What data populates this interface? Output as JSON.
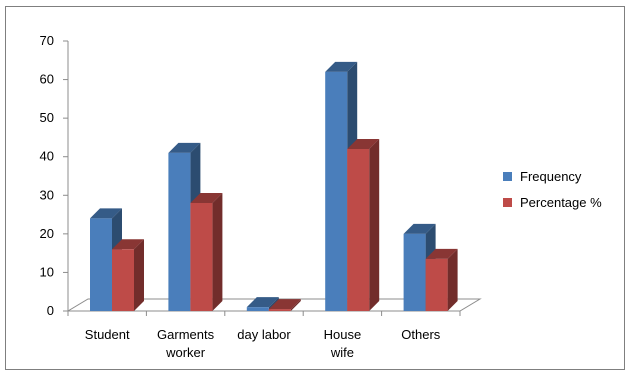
{
  "chart_data": {
    "type": "bar",
    "categories": [
      [
        "Student"
      ],
      [
        "Garments",
        "worker"
      ],
      [
        "day labor"
      ],
      [
        "House",
        "wife"
      ],
      [
        "Others"
      ]
    ],
    "series": [
      {
        "name": "Frequency",
        "values": [
          24,
          41,
          1,
          62,
          20
        ],
        "color": "#4a7ebb"
      },
      {
        "name": "Percentage %",
        "values": [
          16,
          28,
          0.5,
          42,
          13.5
        ],
        "color": "#be4b48"
      }
    ],
    "ylim": [
      0,
      70
    ],
    "yticks": [
      "0",
      "10",
      "20",
      "30",
      "40",
      "50",
      "60",
      "70"
    ],
    "legend_position": "right",
    "style": "3d-clustered-column",
    "grid": false
  }
}
